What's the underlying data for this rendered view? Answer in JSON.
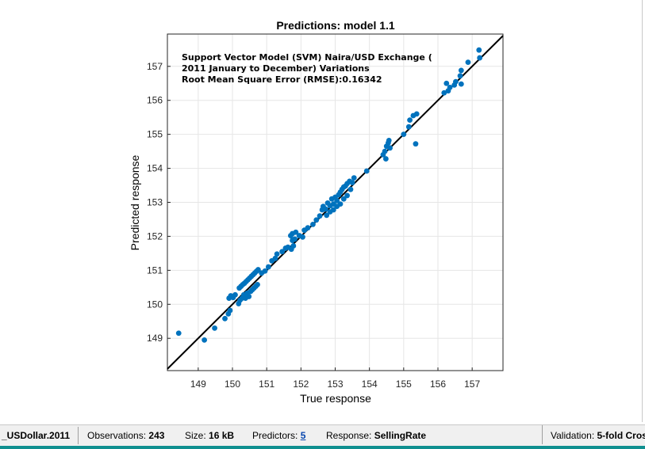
{
  "status_bar": {
    "dataset": "_USDollar.2011",
    "observations_label": "Observations:",
    "observations_value": "243",
    "size_label": "Size:",
    "size_value": "16 kB",
    "predictors_label": "Predictors:",
    "predictors_value": "5",
    "response_label": "Response:",
    "response_value": "SellingRate",
    "validation_label": "Validation:",
    "validation_value": "5-fold Cros"
  },
  "chart_data": {
    "type": "scatter",
    "title": "Predictions: model 1.1",
    "xlabel": "True response",
    "ylabel": "Predicted response",
    "xlim": [
      148.1,
      157.9
    ],
    "ylim": [
      148.05,
      157.95
    ],
    "xticks": [
      "149",
      "150",
      "151",
      "152",
      "153",
      "154",
      "155",
      "156",
      "157"
    ],
    "yticks": [
      "149",
      "150",
      "151",
      "152",
      "153",
      "154",
      "155",
      "156",
      "157"
    ],
    "grid": true,
    "annotation": [
      "Support Vector Model (SVM) Naira/USD Exchange (",
      "2011 January to December) Variations",
      "Root Mean Square Error (RMSE):0.16342"
    ],
    "reference_line": "y = x",
    "colors": {
      "points": "#0072bd",
      "line": "#000000",
      "grid": "#e6e6e6"
    },
    "points": [
      [
        148.43,
        149.15
      ],
      [
        149.18,
        148.95
      ],
      [
        149.48,
        149.3
      ],
      [
        149.78,
        149.58
      ],
      [
        149.88,
        149.72
      ],
      [
        149.93,
        149.82
      ],
      [
        149.9,
        150.18
      ],
      [
        149.95,
        150.25
      ],
      [
        150.02,
        150.2
      ],
      [
        150.08,
        150.28
      ],
      [
        150.18,
        150.02
      ],
      [
        150.22,
        150.12
      ],
      [
        150.28,
        150.18
      ],
      [
        150.33,
        150.28
      ],
      [
        150.38,
        150.18
      ],
      [
        150.43,
        150.33
      ],
      [
        150.48,
        150.23
      ],
      [
        150.53,
        150.38
      ],
      [
        150.58,
        150.43
      ],
      [
        150.63,
        150.48
      ],
      [
        150.68,
        150.53
      ],
      [
        150.73,
        150.58
      ],
      [
        150.2,
        150.48
      ],
      [
        150.25,
        150.53
      ],
      [
        150.3,
        150.58
      ],
      [
        150.35,
        150.62
      ],
      [
        150.4,
        150.67
      ],
      [
        150.45,
        150.72
      ],
      [
        150.5,
        150.77
      ],
      [
        150.55,
        150.82
      ],
      [
        150.6,
        150.87
      ],
      [
        150.65,
        150.92
      ],
      [
        150.7,
        150.97
      ],
      [
        150.75,
        151.02
      ],
      [
        150.85,
        150.92
      ],
      [
        150.95,
        150.98
      ],
      [
        151.05,
        151.1
      ],
      [
        151.15,
        151.28
      ],
      [
        151.25,
        151.35
      ],
      [
        151.3,
        151.48
      ],
      [
        151.45,
        151.55
      ],
      [
        151.55,
        151.65
      ],
      [
        151.62,
        151.68
      ],
      [
        151.72,
        151.62
      ],
      [
        151.78,
        151.72
      ],
      [
        151.75,
        151.88
      ],
      [
        151.82,
        151.92
      ],
      [
        151.7,
        152.02
      ],
      [
        151.75,
        152.08
      ],
      [
        151.85,
        152.12
      ],
      [
        151.95,
        152.02
      ],
      [
        152.05,
        151.98
      ],
      [
        152.1,
        152.18
      ],
      [
        152.2,
        152.25
      ],
      [
        152.35,
        152.35
      ],
      [
        152.45,
        152.48
      ],
      [
        152.55,
        152.6
      ],
      [
        152.62,
        152.78
      ],
      [
        152.65,
        152.88
      ],
      [
        152.72,
        152.8
      ],
      [
        152.78,
        152.98
      ],
      [
        152.85,
        152.9
      ],
      [
        152.9,
        153.1
      ],
      [
        152.95,
        152.95
      ],
      [
        153.0,
        153.15
      ],
      [
        153.05,
        153.05
      ],
      [
        153.1,
        153.22
      ],
      [
        153.15,
        153.3
      ],
      [
        153.2,
        153.38
      ],
      [
        153.25,
        153.45
      ],
      [
        153.3,
        153.48
      ],
      [
        153.35,
        153.55
      ],
      [
        153.42,
        153.62
      ],
      [
        153.5,
        153.58
      ],
      [
        153.55,
        153.72
      ],
      [
        152.75,
        152.62
      ],
      [
        152.85,
        152.72
      ],
      [
        152.95,
        152.78
      ],
      [
        153.05,
        152.88
      ],
      [
        153.15,
        152.95
      ],
      [
        153.25,
        153.1
      ],
      [
        153.35,
        153.2
      ],
      [
        153.45,
        153.38
      ],
      [
        153.92,
        153.92
      ],
      [
        154.4,
        154.4
      ],
      [
        154.45,
        154.5
      ],
      [
        154.5,
        154.65
      ],
      [
        154.48,
        154.28
      ],
      [
        154.55,
        154.75
      ],
      [
        154.57,
        154.82
      ],
      [
        154.6,
        154.6
      ],
      [
        155.0,
        155.0
      ],
      [
        155.15,
        155.22
      ],
      [
        155.18,
        155.42
      ],
      [
        155.28,
        155.55
      ],
      [
        155.38,
        155.6
      ],
      [
        155.35,
        154.72
      ],
      [
        156.18,
        156.22
      ],
      [
        156.25,
        156.5
      ],
      [
        156.3,
        156.28
      ],
      [
        156.35,
        156.38
      ],
      [
        156.48,
        156.45
      ],
      [
        156.52,
        156.55
      ],
      [
        156.65,
        156.72
      ],
      [
        156.68,
        156.88
      ],
      [
        156.68,
        156.48
      ],
      [
        156.88,
        157.12
      ],
      [
        157.22,
        157.25
      ],
      [
        157.2,
        157.48
      ]
    ]
  }
}
